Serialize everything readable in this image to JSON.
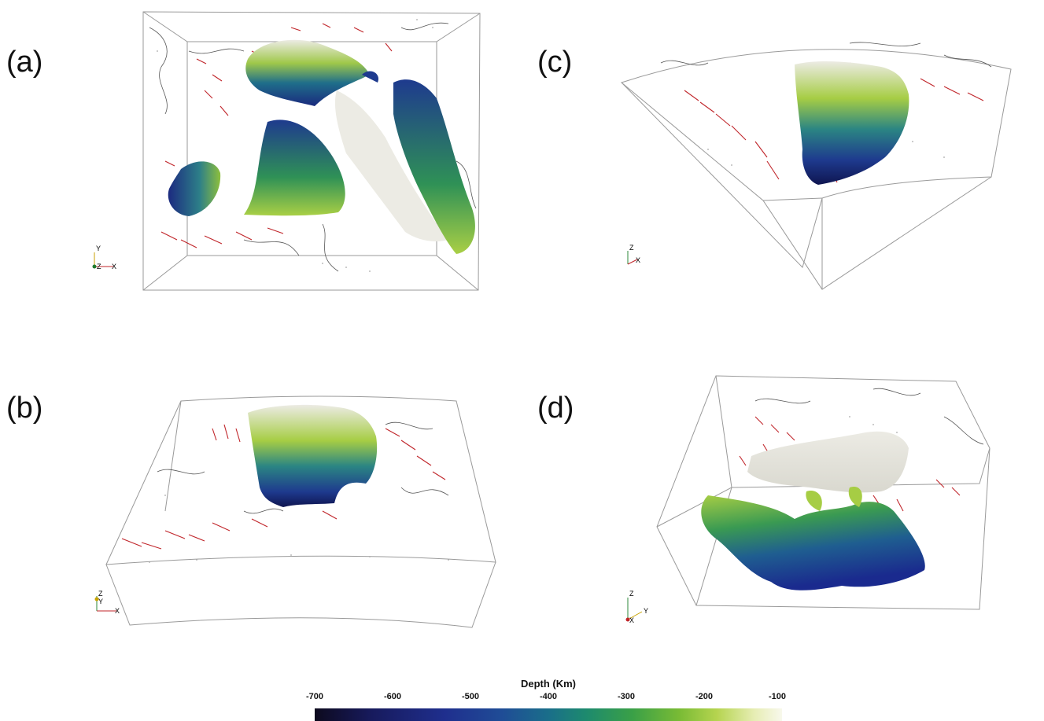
{
  "panels": [
    {
      "label": "(a)"
    },
    {
      "label": "(b)"
    },
    {
      "label": "(c)"
    },
    {
      "label": "(d)"
    }
  ],
  "axes": {
    "a": {
      "y": "Y",
      "z": "Z",
      "x": "X"
    },
    "b": {
      "z": "Z",
      "y": "Y",
      "x": "X"
    },
    "c": {
      "z": "Z",
      "x": "X"
    },
    "d": {
      "z": "Z",
      "x": "X",
      "y": "Y"
    }
  },
  "colorbar": {
    "title": "Depth (Km)",
    "ticks": [
      "-700",
      "-600",
      "-500",
      "-400",
      "-300",
      "-200",
      "-100"
    ],
    "min": -700,
    "max": -100,
    "colors": {
      "deep": "#0d0a1e",
      "mid_blue": "#1f2f8e",
      "teal": "#1a6e8a",
      "green": "#3aa047",
      "light_green": "#b5d44f",
      "shallow": "#f8f8ec"
    }
  },
  "colors": {
    "vector": "#c0252a",
    "box": "#9a9a9a",
    "slab_top": "#ecebe4"
  }
}
